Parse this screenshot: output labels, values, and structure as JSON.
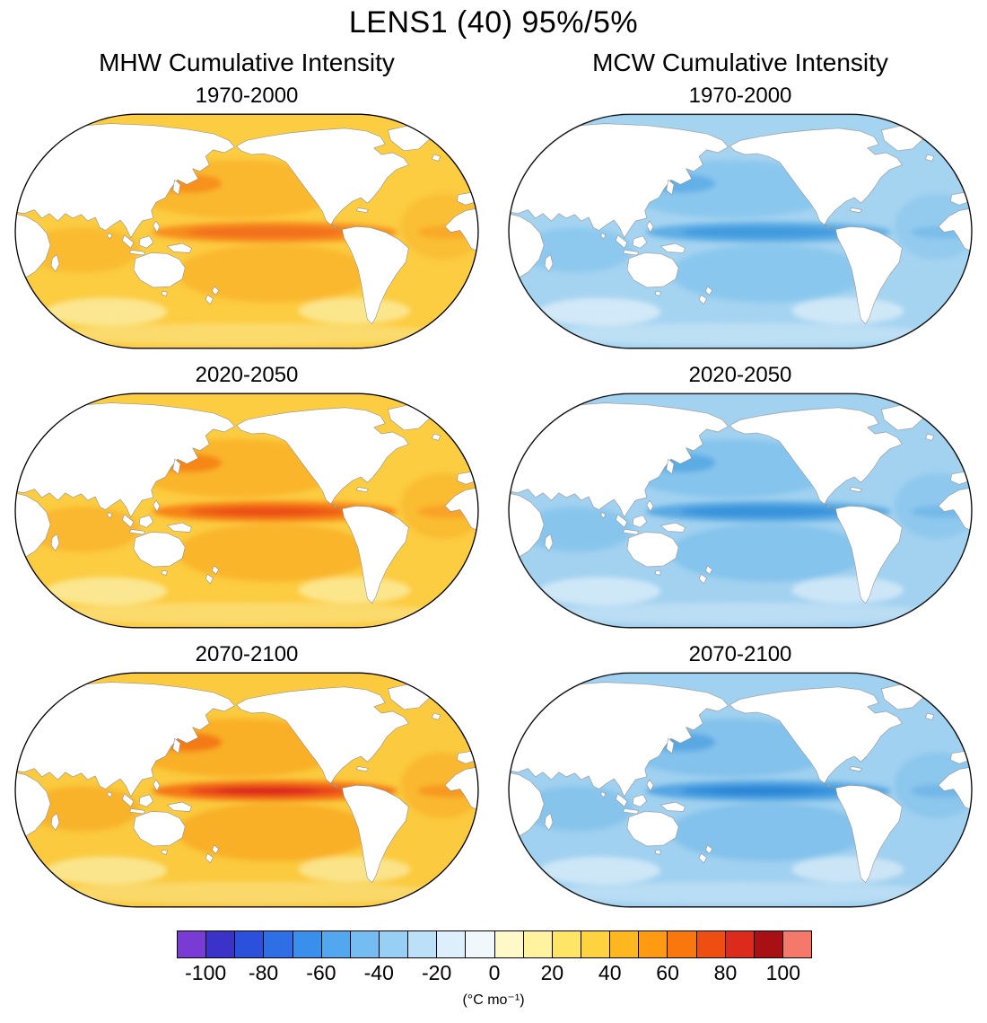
{
  "title": "LENS1 (40) 95%/5%",
  "columns": [
    {
      "label": "MHW Cumulative Intensity"
    },
    {
      "label": "MCW Cumulative Intensity"
    }
  ],
  "panels": [
    {
      "column": "MHW",
      "period": "1970-2000",
      "palette": {
        "base": "#FCCC41",
        "mid": "#F9B62C",
        "band": "#F78C1C",
        "core": "#F2701B",
        "core2": "#F2701B",
        "spot": "#E53A1E",
        "pale": "#FBEA9A"
      }
    },
    {
      "column": "MCW",
      "period": "1970-2000",
      "palette": {
        "base": "#A5D4F1",
        "mid": "#87C5ED",
        "band": "#5FADE5",
        "core": "#419BDE",
        "core2": "#419BDE",
        "spot": "#2F8CD8",
        "pale": "#D6EBF8"
      }
    },
    {
      "column": "MHW",
      "period": "2020-2050",
      "palette": {
        "base": "#FCCC41",
        "mid": "#F9B22A",
        "band": "#F68218",
        "core": "#EE5A18",
        "core2": "#EA4D18",
        "spot": "#E53A1E",
        "pale": "#FBEA9A"
      }
    },
    {
      "column": "MCW",
      "period": "2020-2050",
      "palette": {
        "base": "#A2D2F0",
        "mid": "#82C2EC",
        "band": "#58A8E3",
        "core": "#3793DB",
        "core2": "#3793DB",
        "spot": "#2B86D5",
        "pale": "#D4EAF8"
      }
    },
    {
      "column": "MHW",
      "period": "2070-2100",
      "palette": {
        "base": "#FBCA3E",
        "mid": "#F8AC26",
        "band": "#F47414",
        "core": "#E8421C",
        "core2": "#D8281A",
        "spot": "#DC2F1E",
        "pale": "#FAE896"
      }
    },
    {
      "column": "MCW",
      "period": "2070-2100",
      "palette": {
        "base": "#A0D1F0",
        "mid": "#7FC0EB",
        "band": "#54A5E2",
        "core": "#338FDA",
        "core2": "#2B85D4",
        "spot": "#2881D2",
        "pale": "#D2E9F7"
      }
    }
  ],
  "colorbar": {
    "colors": [
      "#7A3BD4",
      "#3B33C9",
      "#2B50DC",
      "#2F6FE6",
      "#3A8EEC",
      "#52A7EF",
      "#74BCF2",
      "#98CFF5",
      "#BCE0F8",
      "#DCEFFA",
      "#F0F8FC",
      "#FFF9C9",
      "#FFF3A0",
      "#FFE566",
      "#FFD23F",
      "#FFB71F",
      "#FF9A12",
      "#F9770D",
      "#EF4E12",
      "#DC2A1C",
      "#A81016",
      "#F4796B"
    ],
    "ticks": [
      -100,
      -80,
      -60,
      -40,
      -20,
      0,
      20,
      40,
      60,
      80,
      100
    ],
    "range": [
      -110,
      110
    ],
    "unit": "(°C mo⁻¹)"
  },
  "chart_data": {
    "type": "heatmap",
    "title": "LENS1 (40) 95%/5%",
    "subtitle_left": "MHW Cumulative Intensity",
    "subtitle_right": "MCW Cumulative Intensity",
    "units": "°C mo⁻¹",
    "colorbar_ticks": [
      -100,
      -80,
      -60,
      -40,
      -20,
      0,
      20,
      40,
      60,
      80,
      100
    ],
    "colorbar_range": [
      -110,
      110
    ],
    "layout": "2 columns (MHW, MCW) x 3 rows (periods), global Robinson-projection maps, shared horizontal colorbar at bottom",
    "panels": [
      {
        "variable": "MHW cumulative intensity",
        "period": "1970-2000",
        "region_values_degC_mo": {
          "global_ocean_typical": 25,
          "subtropical_gyres": 35,
          "equatorial_pacific_band": 50,
          "equatorial_pacific_core": 65,
          "kuroshio_extension_spot": 70,
          "gulf_stream_spot": 70,
          "southern_ocean": 15
        }
      },
      {
        "variable": "MCW cumulative intensity",
        "period": "1970-2000",
        "region_values_degC_mo": {
          "global_ocean_typical": -25,
          "subtropical_gyres": -35,
          "equatorial_pacific_band": -50,
          "equatorial_pacific_core": -60,
          "kuroshio_extension_spot": -65,
          "gulf_stream_spot": -60,
          "southern_ocean": -15
        }
      },
      {
        "variable": "MHW cumulative intensity",
        "period": "2020-2050",
        "region_values_degC_mo": {
          "global_ocean_typical": 25,
          "subtropical_gyres": 35,
          "equatorial_pacific_band": 55,
          "equatorial_pacific_core": 75,
          "kuroshio_extension_spot": 70,
          "gulf_stream_spot": 70,
          "southern_ocean": 15
        }
      },
      {
        "variable": "MCW cumulative intensity",
        "period": "2020-2050",
        "region_values_degC_mo": {
          "global_ocean_typical": -25,
          "subtropical_gyres": -35,
          "equatorial_pacific_band": -55,
          "equatorial_pacific_core": -65,
          "kuroshio_extension_spot": -65,
          "gulf_stream_spot": -60,
          "southern_ocean": -15
        }
      },
      {
        "variable": "MHW cumulative intensity",
        "period": "2070-2100",
        "region_values_degC_mo": {
          "global_ocean_typical": 30,
          "subtropical_gyres": 40,
          "equatorial_pacific_band": 60,
          "equatorial_pacific_core": 90,
          "kuroshio_extension_spot": 75,
          "gulf_stream_spot": 75,
          "southern_ocean": 15
        }
      },
      {
        "variable": "MCW cumulative intensity",
        "period": "2070-2100",
        "region_values_degC_mo": {
          "global_ocean_typical": -25,
          "subtropical_gyres": -40,
          "equatorial_pacific_band": -60,
          "equatorial_pacific_core": -70,
          "kuroshio_extension_spot": -65,
          "gulf_stream_spot": -60,
          "southern_ocean": -15
        }
      }
    ],
    "notes": "Values estimated from fill colors against the colorbar; strongest signal along equatorial Pacific, intensifying by 2070-2100."
  }
}
